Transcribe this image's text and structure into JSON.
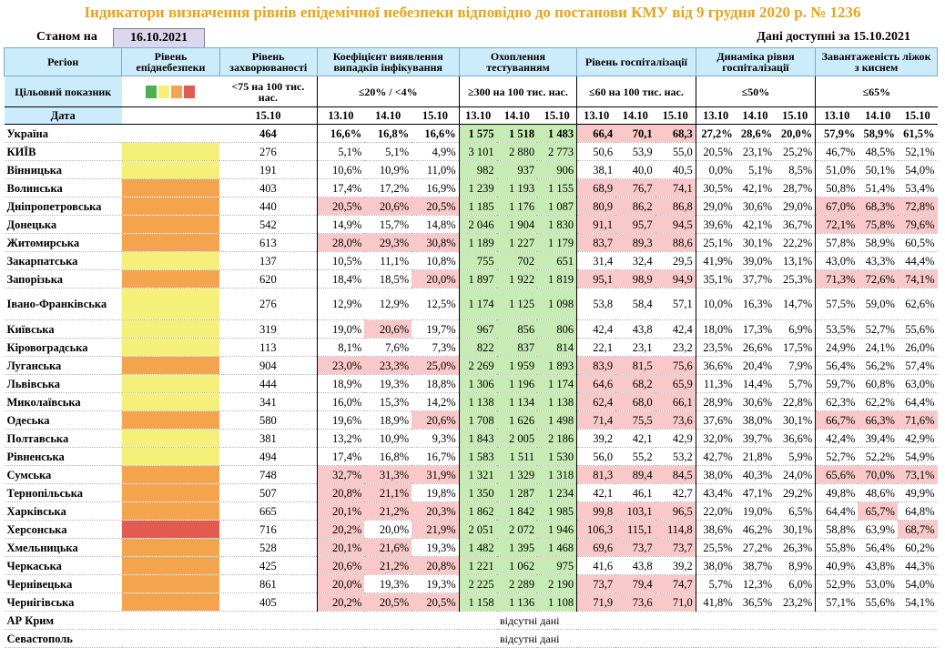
{
  "title": "Індикатори визначення рівнів епідемічної небезпеки відповідно до постанови КМУ від 9 грудня 2020 р. № 1236",
  "as_of_label": "Станом на",
  "as_of_date": "16.10.2021",
  "data_available": "Дані доступні за 15.10.2021",
  "headers": {
    "region": "Регіон",
    "danger_level": "Рівень епіднебезпеки",
    "incidence": "Рівень захворюваності",
    "detection": "Коефіцієнт виявлення випадків інфікування",
    "testing": "Охоплення тестуванням",
    "hospitalization": "Рівень госпіталізації",
    "hosp_dynamics": "Динаміка рівня госпіталізації",
    "oxygen_beds": "Завантаженість ліжок з киснем"
  },
  "targets": {
    "label": "Цільовий показник",
    "incidence": "<75 на 100 тис. нас.",
    "detection": "≤20% / <4%",
    "testing": "≥300 на 100 тис. нас.",
    "hospitalization": "≤60 на 100 тис. нас.",
    "hosp_dynamics": "≤50%",
    "oxygen_beds": "≤65%"
  },
  "legend_colors": [
    "#4caf50",
    "#f5f07a",
    "#f5a44e",
    "#e25a50"
  ],
  "date_label": "Дата",
  "dates": {
    "incidence": "15.10",
    "triple": [
      "13.10",
      "14.10",
      "15.10"
    ]
  },
  "ukraine": {
    "name": "Україна",
    "incidence": "464",
    "detection": [
      "16,6%",
      "16,8%",
      "16,6%"
    ],
    "testing": [
      "1 575",
      "1 518",
      "1 483"
    ],
    "hospitalization": [
      "66,4",
      "70,1",
      "68,3"
    ],
    "hosp_dynamics": [
      "27,2%",
      "28,6%",
      "20,0%"
    ],
    "oxygen_beds": [
      "57,9%",
      "58,9%",
      "61,5%"
    ]
  },
  "rows": [
    {
      "name": "КИЇВ",
      "level": "yellow",
      "inc": "276",
      "det": [
        "5,1%",
        "5,1%",
        "4,9%"
      ],
      "detc": [
        "",
        "",
        ""
      ],
      "tst": [
        "3 101",
        "2 880",
        "2 773"
      ],
      "hosp": [
        "50,6",
        "53,9",
        "55,0"
      ],
      "hospc": [
        "",
        "",
        ""
      ],
      "dyn": [
        "20,5%",
        "23,1%",
        "25,2%"
      ],
      "oxy": [
        "46,7%",
        "48,5%",
        "52,1%"
      ],
      "oxyc": [
        "",
        "",
        ""
      ]
    },
    {
      "name": "Вінницька",
      "level": "yellow",
      "inc": "191",
      "det": [
        "10,6%",
        "10,9%",
        "11,0%"
      ],
      "detc": [
        "",
        "",
        ""
      ],
      "tst": [
        "982",
        "937",
        "906"
      ],
      "hosp": [
        "38,1",
        "40,0",
        "40,5"
      ],
      "hospc": [
        "",
        "",
        ""
      ],
      "dyn": [
        "0,0%",
        "5,1%",
        "8,5%"
      ],
      "oxy": [
        "51,0%",
        "50,1%",
        "54,0%"
      ],
      "oxyc": [
        "",
        "",
        ""
      ]
    },
    {
      "name": "Волинська",
      "level": "orange",
      "inc": "403",
      "det": [
        "17,4%",
        "17,2%",
        "16,9%"
      ],
      "detc": [
        "",
        "",
        ""
      ],
      "tst": [
        "1 239",
        "1 193",
        "1 155"
      ],
      "hosp": [
        "68,9",
        "76,7",
        "74,1"
      ],
      "hospc": [
        "r",
        "r",
        "r"
      ],
      "dyn": [
        "30,5%",
        "42,1%",
        "28,7%"
      ],
      "oxy": [
        "50,8%",
        "51,4%",
        "53,4%"
      ],
      "oxyc": [
        "",
        "",
        ""
      ]
    },
    {
      "name": "Дніпропетровська",
      "level": "orange",
      "inc": "440",
      "det": [
        "20,5%",
        "20,6%",
        "20,5%"
      ],
      "detc": [
        "r",
        "r",
        "r"
      ],
      "tst": [
        "1 185",
        "1 176",
        "1 087"
      ],
      "hosp": [
        "80,9",
        "86,2",
        "86,8"
      ],
      "hospc": [
        "r",
        "r",
        "r"
      ],
      "dyn": [
        "29,0%",
        "30,6%",
        "29,0%"
      ],
      "oxy": [
        "67,0%",
        "68,3%",
        "72,8%"
      ],
      "oxyc": [
        "r",
        "r",
        "r"
      ]
    },
    {
      "name": "Донецька",
      "level": "orange",
      "inc": "542",
      "det": [
        "14,9%",
        "15,7%",
        "14,8%"
      ],
      "detc": [
        "",
        "",
        ""
      ],
      "tst": [
        "2 046",
        "1 904",
        "1 830"
      ],
      "hosp": [
        "91,1",
        "95,7",
        "94,5"
      ],
      "hospc": [
        "r",
        "r",
        "r"
      ],
      "dyn": [
        "39,6%",
        "42,1%",
        "36,7%"
      ],
      "oxy": [
        "72,1%",
        "75,8%",
        "79,6%"
      ],
      "oxyc": [
        "r",
        "r",
        "r"
      ]
    },
    {
      "name": "Житомирська",
      "level": "orange",
      "inc": "613",
      "det": [
        "28,0%",
        "29,3%",
        "30,8%"
      ],
      "detc": [
        "r",
        "r",
        "r"
      ],
      "tst": [
        "1 189",
        "1 227",
        "1 179"
      ],
      "hosp": [
        "83,7",
        "89,3",
        "88,6"
      ],
      "hospc": [
        "r",
        "r",
        "r"
      ],
      "dyn": [
        "25,1%",
        "30,1%",
        "22,2%"
      ],
      "oxy": [
        "57,8%",
        "58,9%",
        "60,5%"
      ],
      "oxyc": [
        "",
        "",
        ""
      ]
    },
    {
      "name": "Закарпатська",
      "level": "yellow",
      "inc": "137",
      "det": [
        "10,5%",
        "11,1%",
        "10,8%"
      ],
      "detc": [
        "",
        "",
        ""
      ],
      "tst": [
        "755",
        "702",
        "651"
      ],
      "hosp": [
        "31,4",
        "32,4",
        "29,5"
      ],
      "hospc": [
        "",
        "",
        ""
      ],
      "dyn": [
        "41,9%",
        "39,0%",
        "13,1%"
      ],
      "oxy": [
        "43,0%",
        "43,3%",
        "44,4%"
      ],
      "oxyc": [
        "",
        "",
        ""
      ]
    },
    {
      "name": "Запорізька",
      "level": "orange",
      "inc": "620",
      "det": [
        "18,4%",
        "18,5%",
        "20,0%"
      ],
      "detc": [
        "",
        "",
        "r"
      ],
      "tst": [
        "1 897",
        "1 922",
        "1 819"
      ],
      "hosp": [
        "95,1",
        "98,9",
        "94,9"
      ],
      "hospc": [
        "r",
        "r",
        "r"
      ],
      "dyn": [
        "35,1%",
        "37,7%",
        "25,3%"
      ],
      "oxy": [
        "71,3%",
        "72,6%",
        "74,1%"
      ],
      "oxyc": [
        "r",
        "r",
        "r"
      ]
    },
    {
      "name": "Івано-Франківська",
      "level": "yellow",
      "tall": true,
      "inc": "276",
      "det": [
        "12,9%",
        "12,9%",
        "12,5%"
      ],
      "detc": [
        "",
        "",
        ""
      ],
      "tst": [
        "1 174",
        "1 125",
        "1 098"
      ],
      "hosp": [
        "53,8",
        "58,4",
        "57,1"
      ],
      "hospc": [
        "",
        "",
        ""
      ],
      "dyn": [
        "10,0%",
        "16,3%",
        "14,7%"
      ],
      "oxy": [
        "57,5%",
        "59,0%",
        "62,6%"
      ],
      "oxyc": [
        "",
        "",
        ""
      ]
    },
    {
      "name": "Київська",
      "level": "yellow",
      "inc": "319",
      "det": [
        "19,0%",
        "20,6%",
        "19,7%"
      ],
      "detc": [
        "",
        "r",
        ""
      ],
      "tst": [
        "967",
        "856",
        "806"
      ],
      "hosp": [
        "42,4",
        "43,8",
        "42,4"
      ],
      "hospc": [
        "",
        "",
        ""
      ],
      "dyn": [
        "18,0%",
        "17,3%",
        "6,9%"
      ],
      "oxy": [
        "53,5%",
        "52,7%",
        "55,6%"
      ],
      "oxyc": [
        "",
        "",
        ""
      ]
    },
    {
      "name": "Кіровоградська",
      "level": "yellow",
      "inc": "113",
      "det": [
        "8,1%",
        "7,6%",
        "7,3%"
      ],
      "detc": [
        "",
        "",
        ""
      ],
      "tst": [
        "822",
        "837",
        "814"
      ],
      "hosp": [
        "22,1",
        "23,1",
        "23,2"
      ],
      "hospc": [
        "",
        "",
        ""
      ],
      "dyn": [
        "23,5%",
        "26,6%",
        "17,5%"
      ],
      "oxy": [
        "24,9%",
        "24,1%",
        "26,0%"
      ],
      "oxyc": [
        "",
        "",
        ""
      ]
    },
    {
      "name": "Луганська",
      "level": "orange",
      "inc": "904",
      "det": [
        "23,0%",
        "23,3%",
        "25,0%"
      ],
      "detc": [
        "r",
        "r",
        "r"
      ],
      "tst": [
        "2 269",
        "1 959",
        "1 893"
      ],
      "hosp": [
        "83,9",
        "81,5",
        "75,6"
      ],
      "hospc": [
        "r",
        "r",
        "r"
      ],
      "dyn": [
        "36,6%",
        "20,4%",
        "7,9%"
      ],
      "oxy": [
        "56,4%",
        "56,2%",
        "57,4%"
      ],
      "oxyc": [
        "",
        "",
        ""
      ]
    },
    {
      "name": "Львівська",
      "level": "yellow",
      "inc": "444",
      "det": [
        "18,9%",
        "19,3%",
        "18,8%"
      ],
      "detc": [
        "",
        "",
        ""
      ],
      "tst": [
        "1 306",
        "1 196",
        "1 174"
      ],
      "hosp": [
        "64,6",
        "68,2",
        "65,9"
      ],
      "hospc": [
        "r",
        "r",
        "r"
      ],
      "dyn": [
        "11,3%",
        "14,4%",
        "5,7%"
      ],
      "oxy": [
        "59,7%",
        "60,8%",
        "63,0%"
      ],
      "oxyc": [
        "",
        "",
        ""
      ]
    },
    {
      "name": "Миколаївська",
      "level": "yellow",
      "inc": "341",
      "det": [
        "16,0%",
        "15,3%",
        "14,2%"
      ],
      "detc": [
        "",
        "",
        ""
      ],
      "tst": [
        "1 138",
        "1 134",
        "1 138"
      ],
      "hosp": [
        "62,4",
        "68,0",
        "66,1"
      ],
      "hospc": [
        "r",
        "r",
        "r"
      ],
      "dyn": [
        "28,9%",
        "30,6%",
        "22,8%"
      ],
      "oxy": [
        "62,3%",
        "62,2%",
        "64,4%"
      ],
      "oxyc": [
        "",
        "",
        ""
      ]
    },
    {
      "name": "Одеська",
      "level": "orange",
      "inc": "580",
      "det": [
        "19,6%",
        "18,9%",
        "20,6%"
      ],
      "detc": [
        "",
        "",
        "r"
      ],
      "tst": [
        "1 708",
        "1 626",
        "1 498"
      ],
      "hosp": [
        "71,4",
        "75,5",
        "73,6"
      ],
      "hospc": [
        "r",
        "r",
        "r"
      ],
      "dyn": [
        "37,6%",
        "38,0%",
        "30,1%"
      ],
      "oxy": [
        "66,7%",
        "66,3%",
        "71,6%"
      ],
      "oxyc": [
        "r",
        "r",
        "r"
      ]
    },
    {
      "name": "Полтавська",
      "level": "yellow",
      "inc": "381",
      "det": [
        "13,2%",
        "10,9%",
        "9,3%"
      ],
      "detc": [
        "",
        "",
        ""
      ],
      "tst": [
        "1 843",
        "2 005",
        "2 186"
      ],
      "hosp": [
        "39,2",
        "42,1",
        "42,9"
      ],
      "hospc": [
        "",
        "",
        ""
      ],
      "dyn": [
        "32,0%",
        "39,7%",
        "36,6%"
      ],
      "oxy": [
        "42,4%",
        "39,4%",
        "42,9%"
      ],
      "oxyc": [
        "",
        "",
        ""
      ]
    },
    {
      "name": "Рівненська",
      "level": "yellow",
      "inc": "494",
      "det": [
        "17,4%",
        "16,8%",
        "16,7%"
      ],
      "detc": [
        "",
        "",
        ""
      ],
      "tst": [
        "1 583",
        "1 511",
        "1 530"
      ],
      "hosp": [
        "56,0",
        "55,2",
        "53,2"
      ],
      "hospc": [
        "",
        "",
        ""
      ],
      "dyn": [
        "42,7%",
        "21,8%",
        "5,9%"
      ],
      "oxy": [
        "52,7%",
        "52,2%",
        "54,9%"
      ],
      "oxyc": [
        "",
        "",
        ""
      ]
    },
    {
      "name": "Сумська",
      "level": "orange",
      "inc": "748",
      "det": [
        "32,7%",
        "31,3%",
        "31,9%"
      ],
      "detc": [
        "r",
        "r",
        "r"
      ],
      "tst": [
        "1 321",
        "1 329",
        "1 318"
      ],
      "hosp": [
        "81,3",
        "89,4",
        "84,5"
      ],
      "hospc": [
        "r",
        "r",
        "r"
      ],
      "dyn": [
        "38,0%",
        "40,3%",
        "24,0%"
      ],
      "oxy": [
        "65,6%",
        "70,0%",
        "73,1%"
      ],
      "oxyc": [
        "r",
        "r",
        "r"
      ]
    },
    {
      "name": "Тернопільська",
      "level": "orange",
      "inc": "507",
      "det": [
        "20,8%",
        "21,1%",
        "19,8%"
      ],
      "detc": [
        "r",
        "r",
        ""
      ],
      "tst": [
        "1 350",
        "1 287",
        "1 234"
      ],
      "hosp": [
        "42,1",
        "46,1",
        "42,7"
      ],
      "hospc": [
        "",
        "",
        ""
      ],
      "dyn": [
        "43,4%",
        "47,1%",
        "29,2%"
      ],
      "oxy": [
        "49,8%",
        "48,6%",
        "49,9%"
      ],
      "oxyc": [
        "",
        "",
        ""
      ]
    },
    {
      "name": "Харківська",
      "level": "orange",
      "inc": "665",
      "det": [
        "20,1%",
        "21,2%",
        "20,3%"
      ],
      "detc": [
        "r",
        "r",
        "r"
      ],
      "tst": [
        "1 862",
        "1 842",
        "1 985"
      ],
      "hosp": [
        "99,8",
        "103,1",
        "96,5"
      ],
      "hospc": [
        "r",
        "r",
        "r"
      ],
      "dyn": [
        "22,0%",
        "19,0%",
        "6,5%"
      ],
      "oxy": [
        "64,4%",
        "65,7%",
        "64,8%"
      ],
      "oxyc": [
        "",
        "r",
        ""
      ]
    },
    {
      "name": "Херсонська",
      "level": "red",
      "inc": "716",
      "det": [
        "20,2%",
        "20,0%",
        "21,9%"
      ],
      "detc": [
        "r",
        "",
        "r"
      ],
      "tst": [
        "2 051",
        "2 072",
        "1 946"
      ],
      "hosp": [
        "106,3",
        "115,1",
        "114,8"
      ],
      "hospc": [
        "r",
        "r",
        "r"
      ],
      "dyn": [
        "38,6%",
        "46,2%",
        "30,1%"
      ],
      "oxy": [
        "58,8%",
        "63,9%",
        "68,7%"
      ],
      "oxyc": [
        "",
        "",
        "r"
      ]
    },
    {
      "name": "Хмельницька",
      "level": "orange",
      "inc": "528",
      "det": [
        "20,1%",
        "21,6%",
        "19,3%"
      ],
      "detc": [
        "r",
        "r",
        ""
      ],
      "tst": [
        "1 482",
        "1 395",
        "1 468"
      ],
      "hosp": [
        "69,6",
        "73,7",
        "73,7"
      ],
      "hospc": [
        "r",
        "r",
        "r"
      ],
      "dyn": [
        "25,5%",
        "27,2%",
        "26,3%"
      ],
      "oxy": [
        "55,8%",
        "56,4%",
        "60,2%"
      ],
      "oxyc": [
        "",
        "",
        ""
      ]
    },
    {
      "name": "Черкаська",
      "level": "orange",
      "inc": "425",
      "det": [
        "20,6%",
        "21,2%",
        "20,8%"
      ],
      "detc": [
        "r",
        "r",
        "r"
      ],
      "tst": [
        "1 221",
        "1 062",
        "975"
      ],
      "hosp": [
        "41,6",
        "43,8",
        "39,2"
      ],
      "hospc": [
        "",
        "",
        ""
      ],
      "dyn": [
        "38,0%",
        "38,7%",
        "8,9%"
      ],
      "oxy": [
        "40,9%",
        "43,8%",
        "44,3%"
      ],
      "oxyc": [
        "",
        "",
        ""
      ]
    },
    {
      "name": "Чернівецька",
      "level": "orange",
      "inc": "861",
      "det": [
        "20,0%",
        "19,3%",
        "19,3%"
      ],
      "detc": [
        "r",
        "",
        ""
      ],
      "tst": [
        "2 225",
        "2 289",
        "2 190"
      ],
      "hosp": [
        "73,7",
        "79,4",
        "74,7"
      ],
      "hospc": [
        "r",
        "r",
        "r"
      ],
      "dyn": [
        "5,7%",
        "12,3%",
        "6,0%"
      ],
      "oxy": [
        "52,9%",
        "53,0%",
        "54,0%"
      ],
      "oxyc": [
        "",
        "",
        ""
      ]
    },
    {
      "name": "Чернігівська",
      "level": "orange",
      "inc": "405",
      "det": [
        "20,2%",
        "20,5%",
        "20,5%"
      ],
      "detc": [
        "r",
        "r",
        "r"
      ],
      "tst": [
        "1 158",
        "1 136",
        "1 108"
      ],
      "hosp": [
        "71,9",
        "73,6",
        "71,0"
      ],
      "hospc": [
        "r",
        "r",
        "r"
      ],
      "dyn": [
        "41,8%",
        "36,5%",
        "23,2%"
      ],
      "oxy": [
        "57,1%",
        "55,6%",
        "54,1%"
      ],
      "oxyc": [
        "",
        "",
        ""
      ]
    }
  ],
  "no_data_rows": [
    {
      "name": "АР Крим",
      "text": "відсутні дані"
    },
    {
      "name": "Севастополь",
      "text": "відсутні дані"
    }
  ]
}
